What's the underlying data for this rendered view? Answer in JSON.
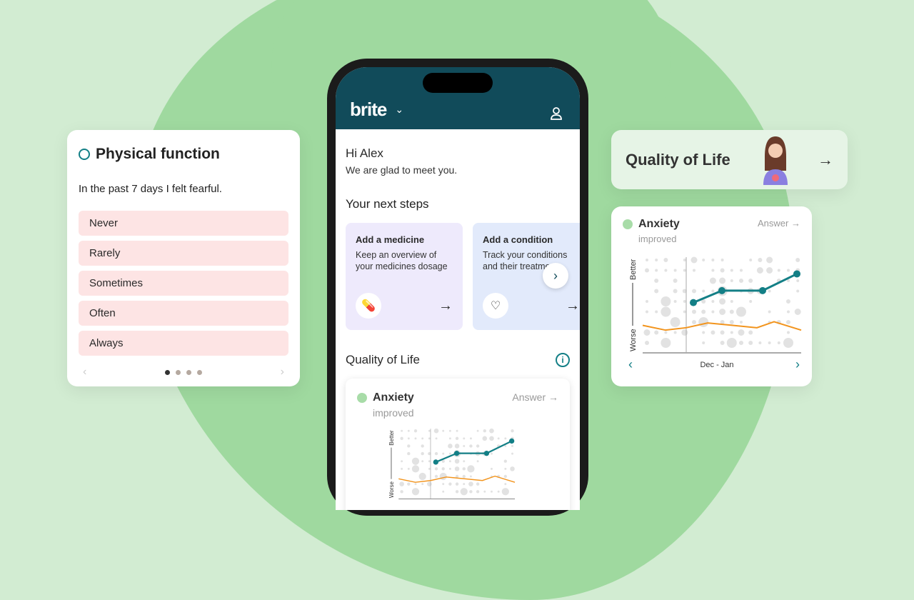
{
  "physical_function": {
    "title": "Physical function",
    "question": "In the past 7 days I felt fearful.",
    "options": [
      "Never",
      "Rarely",
      "Sometimes",
      "Often",
      "Always"
    ],
    "page_count": 4,
    "current_page": 1
  },
  "app": {
    "logo": "brite",
    "greeting": "Hi Alex",
    "subtitle": "We are glad to meet you.",
    "next_steps_title": "Your next steps",
    "steps": [
      {
        "title": "Add a medicine",
        "desc": "Keep an overview of your medicines dosage",
        "icon": "pill-icon"
      },
      {
        "title": "Add a condition",
        "desc": "Track your conditions and their treatments",
        "icon": "heart-pulse-icon"
      }
    ],
    "qol_title": "Quality of Life"
  },
  "anxiety": {
    "title": "Anxiety",
    "status": "improved",
    "answer_label": "Answer",
    "better": "Better",
    "worse": "Worse",
    "period": "Dec - Jan"
  },
  "qol_card": {
    "title": "Quality of Life"
  },
  "colors": {
    "header": "#114b5a",
    "teal": "#137f86",
    "orange": "#f2941d",
    "bg": "#d2ecd2"
  },
  "chart_data": {
    "type": "line",
    "ylabels": [
      "Worse",
      "Better"
    ],
    "xlabel": "Dec - Jan",
    "series": [
      {
        "values": [
          4.2,
          5.2,
          5.2,
          6.6
        ]
      },
      {
        "values": [
          2.3,
          1.9,
          2.1,
          2.5,
          2.1,
          2.6,
          1.9
        ]
      }
    ]
  }
}
